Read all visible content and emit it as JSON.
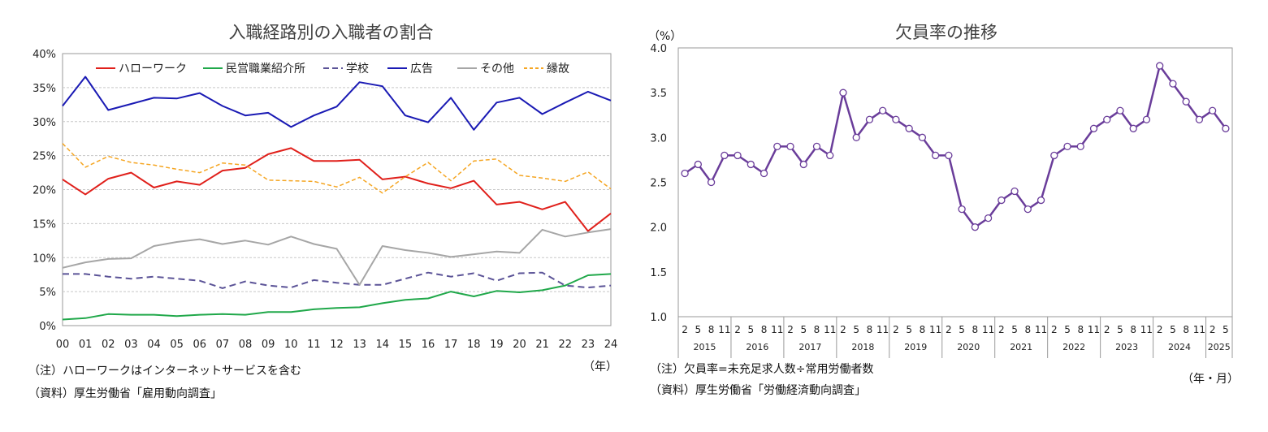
{
  "chart_data": [
    {
      "type": "line",
      "title": "入職経路別の入職者の割合",
      "xlabel": "（年）",
      "ylabel": "",
      "categories": [
        "00",
        "01",
        "02",
        "03",
        "04",
        "05",
        "06",
        "07",
        "08",
        "09",
        "10",
        "11",
        "12",
        "13",
        "14",
        "15",
        "16",
        "17",
        "18",
        "19",
        "20",
        "21",
        "22",
        "23",
        "24"
      ],
      "ylim": [
        0,
        40
      ],
      "yticks": [
        "0%",
        "5%",
        "10%",
        "15%",
        "20%",
        "25%",
        "30%",
        "35%",
        "40%"
      ],
      "grid": true,
      "legend": "top",
      "series": [
        {
          "name": "ハローワーク",
          "color": "#e0201b",
          "dash": "solid",
          "values": [
            21.5,
            19.3,
            21.6,
            22.5,
            20.3,
            21.2,
            20.7,
            22.8,
            23.2,
            25.2,
            26.1,
            24.2,
            24.2,
            24.4,
            21.5,
            21.9,
            20.9,
            20.2,
            21.3,
            17.8,
            18.2,
            17.1,
            18.2,
            13.9,
            16.5
          ]
        },
        {
          "name": "民営職業紹介所",
          "color": "#20a84a",
          "dash": "solid",
          "values": [
            0.9,
            1.1,
            1.7,
            1.6,
            1.6,
            1.4,
            1.6,
            1.7,
            1.6,
            2.0,
            2.0,
            2.4,
            2.6,
            2.7,
            3.3,
            3.8,
            4.0,
            5.0,
            4.3,
            5.1,
            4.9,
            5.2,
            5.9,
            7.4,
            7.6
          ]
        },
        {
          "name": "学校",
          "color": "#5b5397",
          "dash": "dashed",
          "values": [
            7.6,
            7.6,
            7.2,
            6.9,
            7.2,
            6.9,
            6.6,
            5.5,
            6.5,
            5.9,
            5.6,
            6.7,
            6.3,
            6.0,
            6.0,
            6.9,
            7.8,
            7.2,
            7.7,
            6.6,
            7.7,
            7.8,
            5.9,
            5.6,
            5.9
          ]
        },
        {
          "name": "広告",
          "color": "#1a1ab4",
          "dash": "solid",
          "values": [
            32.3,
            36.6,
            31.7,
            32.6,
            33.5,
            33.4,
            34.2,
            32.3,
            30.9,
            31.3,
            29.2,
            30.9,
            32.2,
            35.8,
            35.2,
            30.9,
            29.9,
            33.5,
            28.8,
            32.8,
            33.5,
            31.1,
            32.8,
            34.4,
            33.1
          ]
        },
        {
          "name": "その他",
          "color": "#a6a6a6",
          "dash": "solid",
          "values": [
            8.5,
            9.3,
            9.8,
            9.9,
            11.7,
            12.3,
            12.7,
            12.0,
            12.5,
            11.9,
            13.1,
            12.0,
            11.3,
            6.0,
            11.7,
            11.1,
            10.7,
            10.1,
            10.5,
            10.9,
            10.7,
            14.1,
            13.1,
            13.7,
            14.2
          ]
        },
        {
          "name": "縁故",
          "color": "#f5a623",
          "dash": "dashed",
          "values": [
            26.8,
            23.3,
            24.9,
            24.0,
            23.6,
            23.0,
            22.5,
            23.9,
            23.6,
            21.4,
            21.3,
            21.2,
            20.4,
            21.8,
            19.5,
            21.9,
            24.0,
            21.3,
            24.2,
            24.5,
            22.1,
            21.7,
            21.2,
            22.6,
            20.1
          ]
        }
      ]
    },
    {
      "type": "line",
      "title": "欠員率の推移",
      "xlabel": "（年・月）",
      "ylabel": "（%）",
      "ylim": [
        1.0,
        4.0
      ],
      "yticks": [
        "1.0",
        "1.5",
        "2.0",
        "2.5",
        "3.0",
        "3.5",
        "4.0"
      ],
      "grid": false,
      "color": "#6a3d9a",
      "month_labels": [
        "2",
        "5",
        "8",
        "11"
      ],
      "years": [
        "2015",
        "2016",
        "2017",
        "2018",
        "2019",
        "2020",
        "2021",
        "2022",
        "2023",
        "2024",
        "2025"
      ],
      "values": [
        2.6,
        2.7,
        2.5,
        2.8,
        2.8,
        2.7,
        2.6,
        2.9,
        2.9,
        2.7,
        2.9,
        2.8,
        3.5,
        3.0,
        3.2,
        3.3,
        3.2,
        3.1,
        3.0,
        2.8,
        2.8,
        2.2,
        2.0,
        2.1,
        2.3,
        2.4,
        2.2,
        2.3,
        2.8,
        2.9,
        2.9,
        3.1,
        3.2,
        3.3,
        3.1,
        3.2,
        3.8,
        3.6,
        3.4,
        3.2,
        3.3,
        3.1
      ]
    }
  ],
  "notes": {
    "left_note": "（注）ハローワークはインターネットサービスを含む",
    "left_source": "（資料）厚生労働省「雇用動向調査」",
    "right_note": "（注）欠員率=未充足求人数÷常用労働者数",
    "right_source": "（資料）厚生労働省「労働経済動向調査」"
  }
}
